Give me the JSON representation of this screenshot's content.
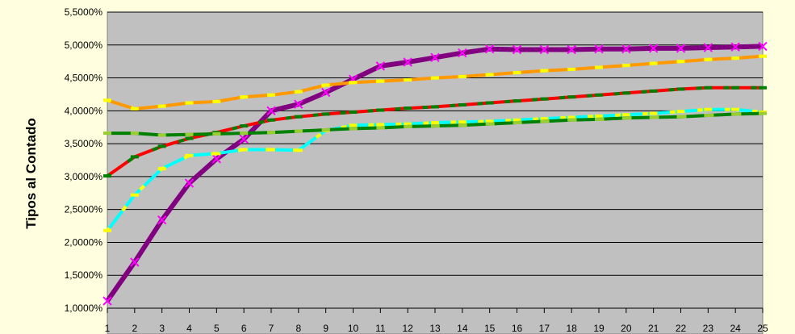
{
  "chart_data": {
    "type": "line",
    "ylabel": "Tipos al Contado",
    "xlabel": "",
    "title": "",
    "x": [
      1,
      2,
      3,
      4,
      5,
      6,
      7,
      8,
      9,
      10,
      11,
      12,
      13,
      14,
      15,
      16,
      17,
      18,
      19,
      20,
      21,
      22,
      23,
      24,
      25
    ],
    "xlim": [
      1,
      25
    ],
    "ylim": [
      1.0,
      5.5
    ],
    "y_ticks": [
      {
        "value": 1.0,
        "label": "1,0000%"
      },
      {
        "value": 1.5,
        "label": "1,5000%"
      },
      {
        "value": 2.0,
        "label": "2,0000%"
      },
      {
        "value": 2.5,
        "label": "2,5000%"
      },
      {
        "value": 3.0,
        "label": "3,0000%"
      },
      {
        "value": 3.5,
        "label": "3,5000%"
      },
      {
        "value": 4.0,
        "label": "4,0000%"
      },
      {
        "value": 4.5,
        "label": "4,5000%"
      },
      {
        "value": 5.0,
        "label": "5,0000%"
      },
      {
        "value": 5.5,
        "label": "5,5000%"
      }
    ],
    "grid": true,
    "plot_background": "#c0c0c0",
    "series": [
      {
        "color": "#800080",
        "marker_color": "#ff00ff",
        "marker": "x",
        "dash": "none",
        "values": [
          1.11,
          1.7,
          2.34,
          2.9,
          3.27,
          3.57,
          4.0,
          4.1,
          4.28,
          4.48,
          4.68,
          4.74,
          4.81,
          4.88,
          4.94,
          4.93,
          4.93,
          4.93,
          4.94,
          4.94,
          4.95,
          4.95,
          4.96,
          4.97,
          4.98
        ]
      },
      {
        "color": "#ff9900",
        "marker_color": "#ffff00",
        "marker": "dash",
        "dash": "dashed",
        "values": [
          4.16,
          4.03,
          4.07,
          4.12,
          4.14,
          4.21,
          4.24,
          4.29,
          4.39,
          4.43,
          4.45,
          4.47,
          4.5,
          4.52,
          4.55,
          4.58,
          4.61,
          4.63,
          4.66,
          4.69,
          4.72,
          4.75,
          4.78,
          4.8,
          4.83
        ]
      },
      {
        "color": "#ff0000",
        "marker_color": "#008000",
        "marker": "dash",
        "dash": "dashed",
        "values": [
          3.01,
          3.3,
          3.46,
          3.58,
          3.67,
          3.77,
          3.86,
          3.91,
          3.95,
          3.98,
          4.01,
          4.04,
          4.06,
          4.09,
          4.12,
          4.15,
          4.18,
          4.21,
          4.24,
          4.27,
          4.3,
          4.33,
          4.35,
          4.35,
          4.35
        ]
      },
      {
        "color": "#00ffff",
        "marker_color": "#ffff00",
        "marker": "dash",
        "dash": "dashed",
        "values": [
          2.18,
          2.72,
          3.12,
          3.32,
          3.35,
          3.41,
          3.41,
          3.4,
          3.7,
          3.78,
          3.79,
          3.8,
          3.82,
          3.83,
          3.84,
          3.86,
          3.88,
          3.9,
          3.92,
          3.94,
          3.96,
          3.99,
          4.02,
          4.02,
          3.98
        ]
      },
      {
        "color": "#008000",
        "marker_color": "#9acd32",
        "marker": "dash",
        "dash": "dashed",
        "values": [
          3.66,
          3.66,
          3.63,
          3.64,
          3.65,
          3.66,
          3.67,
          3.69,
          3.71,
          3.73,
          3.74,
          3.76,
          3.77,
          3.78,
          3.8,
          3.82,
          3.84,
          3.86,
          3.87,
          3.89,
          3.9,
          3.91,
          3.93,
          3.95,
          3.96
        ]
      }
    ]
  }
}
